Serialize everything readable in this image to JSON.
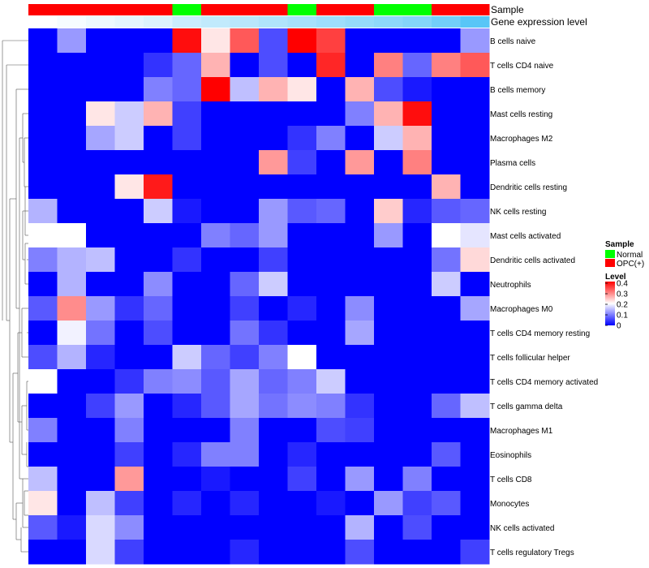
{
  "chart_data": {
    "type": "heatmap",
    "annotations": [
      {
        "name": "Sample"
      },
      {
        "name": "Gene expression level"
      }
    ],
    "sample_colors": {
      "Normal": "#00ff00",
      "OPC(+)": "#ff0000"
    },
    "sample_groups": [
      "OPC(+)",
      "OPC(+)",
      "OPC(+)",
      "OPC(+)",
      "OPC(+)",
      "Normal",
      "OPC(+)",
      "OPC(+)",
      "OPC(+)",
      "Normal",
      "OPC(+)",
      "OPC(+)",
      "Normal",
      "Normal",
      "OPC(+)",
      "OPC(+)"
    ],
    "expression_level": [
      0,
      0.05,
      0.1,
      0.15,
      0.2,
      0.3,
      0.35,
      0.4,
      0.45,
      0.5,
      0.55,
      0.6,
      0.65,
      0.7,
      0.8,
      0.95
    ],
    "expression_colors": [
      "#ffffff",
      "#4fc3f7"
    ],
    "rows": [
      "B cells naive",
      "T cells CD4 naive",
      "B cells memory",
      "Mast cells resting",
      "Macrophages M2",
      "Plasma cells",
      "Dendritic cells resting",
      "NK cells resting",
      "Mast cells activated",
      "Dendritic cells activated",
      "Neutrophils",
      "Macrophages M0",
      "T cells CD4 memory resting",
      "T cells follicular helper",
      "T cells CD4 memory activated",
      "T cells gamma delta",
      "Macrophages M1",
      "Eosinophils",
      "T cells CD8",
      "Monocytes",
      "NK cells activated",
      "T cells regulatory  Tregs"
    ],
    "values": [
      [
        0,
        0.12,
        0,
        0,
        0,
        0.39,
        0.22,
        0.33,
        0.06,
        0.4,
        0.35,
        0,
        0,
        0,
        0,
        0.12
      ],
      [
        0,
        0,
        0,
        0,
        0.04,
        0.08,
        0.26,
        0,
        0.06,
        0,
        0.37,
        0,
        0.3,
        0.08,
        0.3,
        0.33
      ],
      [
        0,
        0,
        0,
        0,
        0.1,
        0.08,
        0.4,
        0.15,
        0.26,
        0.22,
        0,
        0.26,
        0.06,
        0.02,
        0,
        0
      ],
      [
        0,
        0,
        0.22,
        0.16,
        0.26,
        0.05,
        0,
        0,
        0,
        0,
        0,
        0.1,
        0.26,
        0.39,
        0,
        0
      ],
      [
        0,
        0,
        0.13,
        0.16,
        0,
        0.05,
        0,
        0,
        0,
        0.04,
        0.1,
        0,
        0.16,
        0.26,
        0,
        0
      ],
      [
        0,
        0,
        0,
        0,
        0,
        0,
        0,
        0,
        0.28,
        0.05,
        0,
        0.28,
        0,
        0.3,
        0,
        0
      ],
      [
        0,
        0,
        0,
        0.22,
        0.38,
        0,
        0,
        0,
        0,
        0,
        0,
        0,
        0,
        0,
        0.26,
        0
      ],
      [
        0.14,
        0,
        0,
        0,
        0.16,
        0.02,
        0,
        0,
        0.12,
        0.07,
        0.08,
        0,
        0.24,
        0.03,
        0.07,
        0.08
      ],
      [
        0.2,
        0.2,
        0,
        0,
        0,
        0,
        0.1,
        0.08,
        0.12,
        0,
        0,
        0,
        0.12,
        0,
        0.2,
        0.18
      ],
      [
        0.1,
        0.14,
        0.15,
        0,
        0,
        0.04,
        0,
        0,
        0.05,
        0,
        0,
        0,
        0,
        0,
        0.09,
        0.23
      ],
      [
        0,
        0.14,
        0,
        0,
        0.11,
        0,
        0,
        0.08,
        0.16,
        0,
        0,
        0,
        0,
        0,
        0.16,
        0
      ],
      [
        0.07,
        0.29,
        0.12,
        0.04,
        0.08,
        0,
        0,
        0.05,
        0,
        0.03,
        0,
        0.11,
        0,
        0,
        0,
        0.13
      ],
      [
        0,
        0.19,
        0.09,
        0,
        0.06,
        0,
        0,
        0.09,
        0.04,
        0,
        0,
        0.13,
        0,
        0,
        0,
        0
      ],
      [
        0.06,
        0.14,
        0.03,
        0,
        0,
        0.16,
        0.08,
        0.05,
        0.1,
        0.2,
        0,
        0,
        0,
        0,
        0,
        0
      ],
      [
        0.2,
        0,
        0,
        0.04,
        0.1,
        0.11,
        0.07,
        0.13,
        0.08,
        0.1,
        0.16,
        0,
        0,
        0,
        0,
        0
      ],
      [
        0,
        0,
        0.05,
        0.12,
        0,
        0.03,
        0.07,
        0.13,
        0.09,
        0.11,
        0.1,
        0.04,
        0,
        0,
        0.08,
        0.15
      ],
      [
        0.1,
        0,
        0,
        0.1,
        0,
        0,
        0,
        0.1,
        0,
        0,
        0.06,
        0.05,
        0,
        0,
        0,
        0
      ],
      [
        0,
        0,
        0,
        0.05,
        0,
        0.03,
        0.1,
        0.1,
        0,
        0.03,
        0,
        0,
        0,
        0,
        0.07,
        0
      ],
      [
        0.15,
        0,
        0,
        0.28,
        0,
        0,
        0.02,
        0,
        0,
        0.05,
        0,
        0.12,
        0,
        0.1,
        0,
        0
      ],
      [
        0.22,
        0,
        0.15,
        0.05,
        0,
        0.03,
        0,
        0.03,
        0,
        0,
        0.02,
        0,
        0.12,
        0.05,
        0.07,
        0
      ],
      [
        0.07,
        0.02,
        0.17,
        0.11,
        0,
        0,
        0,
        0,
        0,
        0,
        0,
        0.14,
        0,
        0.06,
        0,
        0
      ],
      [
        0,
        0,
        0.17,
        0.05,
        0,
        0,
        0,
        0.03,
        0,
        0,
        0,
        0.06,
        0,
        0,
        0,
        0.05
      ]
    ],
    "color_scale": {
      "low": "#0000ff",
      "mid": "#ffffff",
      "high": "#ff0000",
      "range": [
        0,
        0.4
      ],
      "mid_value": 0.2
    },
    "legends": [
      {
        "title": "Sample",
        "entries": [
          "Normal",
          "OPC(+)"
        ]
      },
      {
        "title": "Level",
        "ticks": [
          "0.4",
          "0.3",
          "0.2",
          "0.1",
          "0"
        ],
        "tick_values": [
          0.4,
          0.3,
          0.2,
          0.1,
          0
        ]
      }
    ]
  }
}
